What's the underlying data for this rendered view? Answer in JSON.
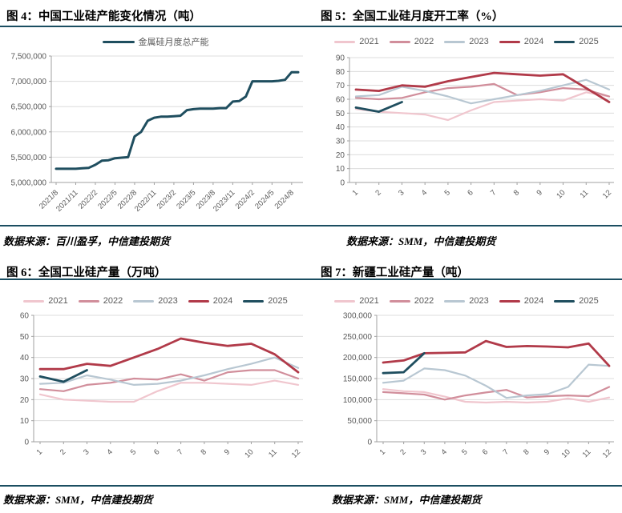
{
  "colors": {
    "accent_rule": "#1b4e61",
    "grid_line": "#dcdcdc",
    "axis_line": "#a0a0a0",
    "tick_text": "#595959"
  },
  "chart_data": [
    {
      "id": "fig4",
      "type": "line",
      "title": "图 4：中国工业硅产能变化情况（吨）",
      "source": "数据来源：百川盈孚，中信建投期货",
      "legend_position": "top",
      "grid": true,
      "ylim": [
        5000000,
        7500000
      ],
      "y_ticks": [
        5000000,
        5500000,
        6000000,
        6500000,
        7000000,
        7500000
      ],
      "y_tick_labels": [
        "5,000,000",
        "5,500,000",
        "6,000,000",
        "6,500,000",
        "7,000,000",
        "7,500,000"
      ],
      "x_labels": [
        "2021/8",
        "2021/11",
        "2022/2",
        "2022/5",
        "2022/8",
        "2022/11",
        "2023/2",
        "2023/5",
        "2023/8",
        "2023/11",
        "2024/2",
        "2024/5",
        "2024/8"
      ],
      "label_step": 3,
      "n_points": 38,
      "series": [
        {
          "name": "金属硅月度总产能",
          "color": "#1f4e5f",
          "width": 3,
          "values": [
            5270000,
            5270000,
            5270000,
            5270000,
            5280000,
            5290000,
            5350000,
            5430000,
            5440000,
            5480000,
            5490000,
            5500000,
            5910000,
            6000000,
            6220000,
            6280000,
            6300000,
            6300000,
            6310000,
            6320000,
            6430000,
            6450000,
            6460000,
            6460000,
            6460000,
            6470000,
            6470000,
            6600000,
            6610000,
            6700000,
            7000000,
            7000000,
            7000000,
            7000000,
            7010000,
            7030000,
            7180000,
            7180000
          ]
        }
      ]
    },
    {
      "id": "fig5",
      "type": "line",
      "title": "图 5：全国工业硅月度开工率（%）",
      "source": "数据来源：SMM，中信建投期货",
      "legend_position": "top",
      "grid": true,
      "ylim": [
        0,
        90
      ],
      "y_ticks": [
        0,
        10,
        20,
        30,
        40,
        50,
        60,
        70,
        80,
        90
      ],
      "y_tick_labels": [
        "0",
        "10",
        "20",
        "30",
        "40",
        "50",
        "60",
        "70",
        "80",
        "90"
      ],
      "x_labels": [
        "1",
        "2",
        "3",
        "4",
        "5",
        "6",
        "7",
        "8",
        "9",
        "10",
        "11",
        "12"
      ],
      "label_step": 1,
      "n_points": 12,
      "series": [
        {
          "name": "2021",
          "color": "#f0c6ce",
          "width": 2.2,
          "values": [
            53,
            51,
            50,
            49,
            45,
            52,
            58,
            59,
            60,
            59,
            65,
            62
          ]
        },
        {
          "name": "2022",
          "color": "#d18e9b",
          "width": 2.2,
          "values": [
            61,
            60,
            61,
            65,
            68,
            69,
            71,
            63,
            65,
            68,
            67,
            62
          ]
        },
        {
          "name": "2023",
          "color": "#b8c7d2",
          "width": 2.2,
          "values": [
            62,
            63,
            69,
            66,
            62,
            57,
            60,
            63,
            66,
            70,
            74,
            67
          ]
        },
        {
          "name": "2024",
          "color": "#b13a49",
          "width": 2.8,
          "values": [
            67,
            66,
            70,
            69,
            73,
            76,
            79,
            78,
            77,
            78,
            68,
            58
          ]
        },
        {
          "name": "2025",
          "color": "#1f4e5f",
          "width": 2.8,
          "values": [
            54,
            51,
            58
          ]
        }
      ]
    },
    {
      "id": "fig6",
      "type": "line",
      "title": "图 6：全国工业硅产量（万吨）",
      "source": "数据来源：SMM，中信建投期货",
      "legend_position": "top",
      "grid": true,
      "ylim": [
        0,
        60
      ],
      "y_ticks": [
        0,
        10,
        20,
        30,
        40,
        50,
        60
      ],
      "y_tick_labels": [
        "0",
        "10",
        "20",
        "30",
        "40",
        "50",
        "60"
      ],
      "x_labels": [
        "1",
        "2",
        "3",
        "4",
        "5",
        "6",
        "7",
        "8",
        "9",
        "10",
        "11",
        "12"
      ],
      "label_step": 1,
      "n_points": 12,
      "series": [
        {
          "name": "2021",
          "color": "#f0c6ce",
          "width": 2.2,
          "values": [
            22.5,
            20,
            19.5,
            19,
            19,
            24,
            28,
            28,
            27.5,
            27,
            29,
            27
          ]
        },
        {
          "name": "2022",
          "color": "#d18e9b",
          "width": 2.2,
          "values": [
            25,
            24,
            27,
            28,
            30,
            29.5,
            32,
            29,
            33,
            34,
            34,
            30
          ]
        },
        {
          "name": "2023",
          "color": "#b8c7d2",
          "width": 2.2,
          "values": [
            27.5,
            28,
            31.5,
            29.5,
            27,
            27.5,
            29,
            31.5,
            34.5,
            37,
            40,
            35
          ]
        },
        {
          "name": "2024",
          "color": "#b13a49",
          "width": 2.8,
          "values": [
            34.5,
            34.5,
            37,
            36,
            40,
            44,
            49,
            47,
            45.5,
            46.5,
            41.5,
            33
          ]
        },
        {
          "name": "2025",
          "color": "#1f4e5f",
          "width": 2.8,
          "values": [
            31,
            28.5,
            34
          ]
        }
      ]
    },
    {
      "id": "fig7",
      "type": "line",
      "title": "图 7：新疆工业硅产量（吨）",
      "source": "数据来源：SMM，中信建投期货",
      "legend_position": "top",
      "grid": true,
      "ylim": [
        0,
        300000
      ],
      "y_ticks": [
        0,
        50000,
        100000,
        150000,
        200000,
        250000,
        300000
      ],
      "y_tick_labels": [
        "0",
        "50,000",
        "100,000",
        "150,000",
        "200,000",
        "250,000",
        "300,000"
      ],
      "x_labels": [
        "1",
        "2",
        "3",
        "4",
        "5",
        "6",
        "7",
        "8",
        "9",
        "10",
        "11",
        "12"
      ],
      "label_step": 1,
      "n_points": 12,
      "series": [
        {
          "name": "2021",
          "color": "#f0c6ce",
          "width": 2.2,
          "values": [
            125000,
            120000,
            118000,
            107000,
            95000,
            93000,
            95000,
            93000,
            95000,
            103000,
            95000,
            105000
          ]
        },
        {
          "name": "2022",
          "color": "#d18e9b",
          "width": 2.2,
          "values": [
            118000,
            115000,
            112000,
            100000,
            110000,
            117000,
            123000,
            105000,
            108000,
            110000,
            108000,
            130000
          ]
        },
        {
          "name": "2023",
          "color": "#b8c7d2",
          "width": 2.2,
          "values": [
            140000,
            145000,
            174000,
            170000,
            157000,
            133000,
            104000,
            110000,
            113000,
            130000,
            183000,
            180000
          ]
        },
        {
          "name": "2024",
          "color": "#b13a49",
          "width": 2.8,
          "values": [
            188000,
            193000,
            210000,
            211000,
            212000,
            239000,
            225000,
            227000,
            226000,
            224000,
            233000,
            180000
          ]
        },
        {
          "name": "2025",
          "color": "#1f4e5f",
          "width": 2.8,
          "values": [
            163000,
            165000,
            210000
          ]
        }
      ]
    }
  ]
}
